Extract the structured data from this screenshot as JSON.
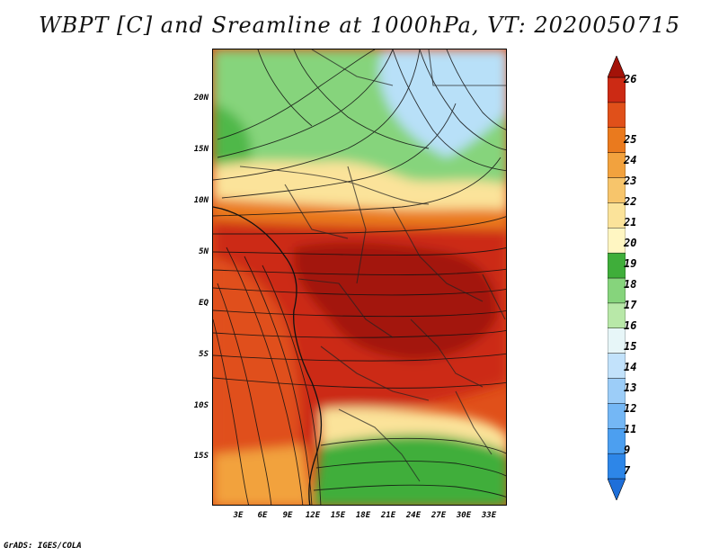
{
  "title": "WBPT [C] and Sreamline at 1000hPa, VT: 2020050715",
  "credit": "GrADS: IGES/COLA",
  "lat_labels": [
    "20N",
    "15N",
    "10N",
    "5N",
    "EQ",
    "5S",
    "10S",
    "15S"
  ],
  "lon_labels": [
    "3E",
    "6E",
    "9E",
    "12E",
    "15E",
    "18E",
    "21E",
    "24E",
    "27E",
    "30E",
    "33E"
  ],
  "colorbar": {
    "labels": [
      "7",
      "9",
      "11",
      "12",
      "13",
      "14",
      "15",
      "16",
      "17",
      "18",
      "19",
      "20",
      "21",
      "22",
      "23",
      "24",
      "25",
      "26"
    ],
    "colors": [
      "#1e6fd9",
      "#2d86e8",
      "#4c9ff0",
      "#74b7f5",
      "#9ccdf8",
      "#c2e2fb",
      "#e7f6f8",
      "#b8e8a8",
      "#86d47c",
      "#3fae3a",
      "#fff6c2",
      "#fbe39a",
      "#f7c56b",
      "#f2a23e",
      "#ea7a1e",
      "#e0501a",
      "#cc2a14",
      "#a31208"
    ]
  },
  "regions": {
    "north_high_color": "#b8e0f8",
    "north_green_color": "#86d47c",
    "south_green_color": "#3fae3a",
    "warm_core_color": "#c22c14",
    "hot_core_color": "#a31208",
    "orange_color": "#ea7a1e",
    "yellow_color": "#fbe39a"
  }
}
